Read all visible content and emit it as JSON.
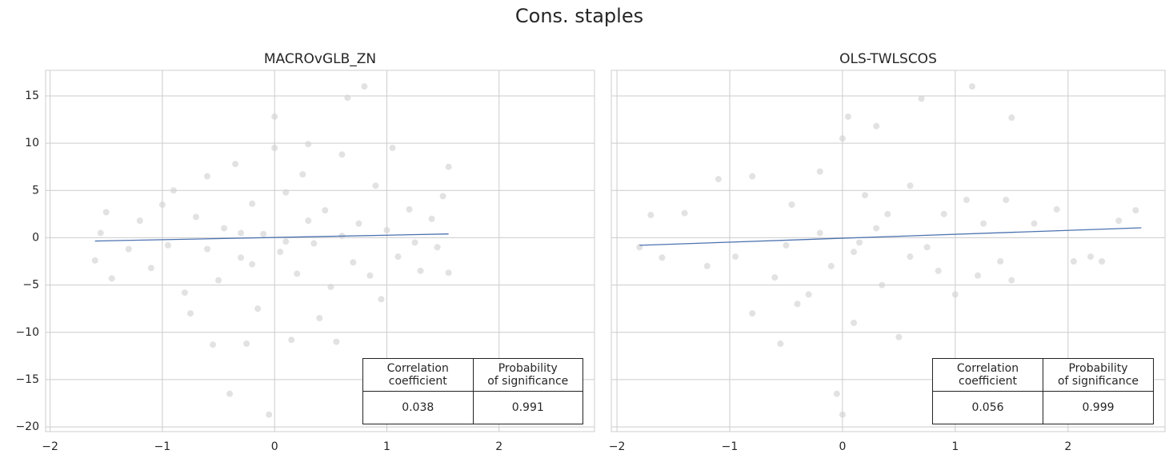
{
  "title": "Cons. staples",
  "chart_data": [
    {
      "type": "scatter",
      "title": "MACROvGLB_ZN",
      "color": "#d3d3d3",
      "xlim": [
        -2.04,
        2.85
      ],
      "ylim": [
        -20.5,
        17.7
      ],
      "grid": true,
      "ytick_labels": true,
      "xticks": [
        {
          "value": -2,
          "label": "−2"
        },
        {
          "value": -1,
          "label": "−1"
        },
        0,
        1,
        2
      ],
      "yticks": [
        {
          "value": -20,
          "label": "−20"
        },
        {
          "value": -15,
          "label": "−15"
        },
        {
          "value": -10,
          "label": "−10"
        },
        {
          "value": -5,
          "label": "−5"
        },
        0,
        5,
        10,
        15
      ],
      "x": [
        -1.6,
        -1.55,
        -1.5,
        -1.45,
        -1.3,
        -1.2,
        -1.1,
        -1.0,
        -0.95,
        -0.9,
        -0.8,
        -0.75,
        -0.7,
        -0.6,
        -0.55,
        -0.5,
        -0.45,
        -0.4,
        -0.35,
        -0.3,
        -0.25,
        -0.2,
        -0.15,
        -0.1,
        -0.05,
        0,
        0,
        0.05,
        0.1,
        0.15,
        0.2,
        0.25,
        0.3,
        0.35,
        0.4,
        0.45,
        0.5,
        0.55,
        0.6,
        0.65,
        0.7,
        0.75,
        0.8,
        0.85,
        0.9,
        0.95,
        1.0,
        1.05,
        1.1,
        1.2,
        1.25,
        1.3,
        1.4,
        1.45,
        1.5,
        1.55,
        1.55,
        -0.3,
        0.1,
        -0.6,
        0.3,
        -0.2,
        0.6
      ],
      "values": [
        -2.4,
        0.5,
        2.7,
        -4.3,
        -1.2,
        1.8,
        -3.2,
        3.5,
        -0.8,
        5.0,
        -5.8,
        -8.0,
        2.2,
        6.5,
        -11.3,
        -4.5,
        1.0,
        -16.5,
        7.8,
        -2.1,
        -11.2,
        3.6,
        -7.5,
        0.4,
        -18.7,
        12.8,
        9.5,
        -1.5,
        4.8,
        -10.8,
        -3.8,
        6.7,
        9.9,
        -0.6,
        -8.5,
        2.9,
        -5.2,
        -11.0,
        8.8,
        14.8,
        -2.6,
        1.5,
        16.0,
        -4.0,
        5.5,
        -6.5,
        0.8,
        9.5,
        -2.0,
        3.0,
        -0.5,
        -3.5,
        2.0,
        -1.0,
        4.4,
        7.5,
        -3.7,
        0.5,
        -0.4,
        -1.2,
        1.8,
        -2.8,
        0.2
      ],
      "fit": {
        "color": "#4c72b0",
        "x": [
          -1.6,
          1.55
        ],
        "values": [
          -0.35,
          0.4
        ]
      },
      "table": {
        "header": [
          "Correlation\ncoefficient",
          "Probability\nof significance"
        ],
        "rows": [
          [
            0.038,
            0.991
          ]
        ]
      }
    },
    {
      "type": "scatter",
      "title": "OLS-TWLSCOS",
      "color": "#d3d3d3",
      "xlim": [
        -2.05,
        2.86
      ],
      "ylim": [
        -20.5,
        17.7
      ],
      "grid": true,
      "ytick_labels": false,
      "xticks": [
        {
          "value": -2,
          "label": "−2"
        },
        {
          "value": -1,
          "label": "−1"
        },
        0,
        1,
        2
      ],
      "yticks": [
        -20,
        -15,
        -10,
        -5,
        0,
        5,
        10,
        15
      ],
      "x": [
        -1.8,
        -1.7,
        -1.6,
        -1.4,
        -1.2,
        -1.1,
        -0.95,
        -0.8,
        -0.8,
        -0.6,
        -0.55,
        -0.45,
        -0.4,
        -0.3,
        -0.2,
        -0.1,
        -0.05,
        0,
        0,
        0.05,
        0.1,
        0.15,
        0.2,
        0.3,
        0.35,
        0.4,
        0.5,
        0.6,
        0.7,
        0.75,
        0.85,
        0.9,
        1.0,
        1.1,
        1.15,
        1.2,
        1.25,
        1.4,
        1.45,
        1.5,
        1.5,
        1.7,
        1.9,
        2.05,
        2.2,
        2.3,
        2.45,
        2.6,
        -0.2,
        0.1,
        0.3,
        -0.5,
        0.6
      ],
      "values": [
        -1.0,
        2.4,
        -2.1,
        2.6,
        -3.0,
        6.2,
        -2.0,
        6.5,
        -8.0,
        -4.2,
        -11.2,
        3.5,
        -7.0,
        -6.0,
        7.0,
        -3.0,
        -16.5,
        -18.7,
        10.5,
        12.8,
        -9.0,
        -0.5,
        4.5,
        11.8,
        -5.0,
        2.5,
        -10.5,
        5.5,
        14.7,
        -1.0,
        -3.5,
        2.5,
        -6.0,
        4.0,
        16.0,
        -4.0,
        1.5,
        -2.5,
        4.0,
        -4.5,
        12.7,
        1.5,
        3.0,
        -2.5,
        -2.0,
        -2.5,
        1.8,
        2.9,
        0.5,
        -1.5,
        1.0,
        -0.8,
        -2.0
      ],
      "fit": {
        "color": "#4c72b0",
        "x": [
          -1.8,
          2.65
        ],
        "values": [
          -0.8,
          1.05
        ]
      },
      "table": {
        "header": [
          "Correlation\ncoefficient",
          "Probability\nof significance"
        ],
        "rows": [
          [
            0.056,
            0.999
          ]
        ]
      }
    }
  ]
}
